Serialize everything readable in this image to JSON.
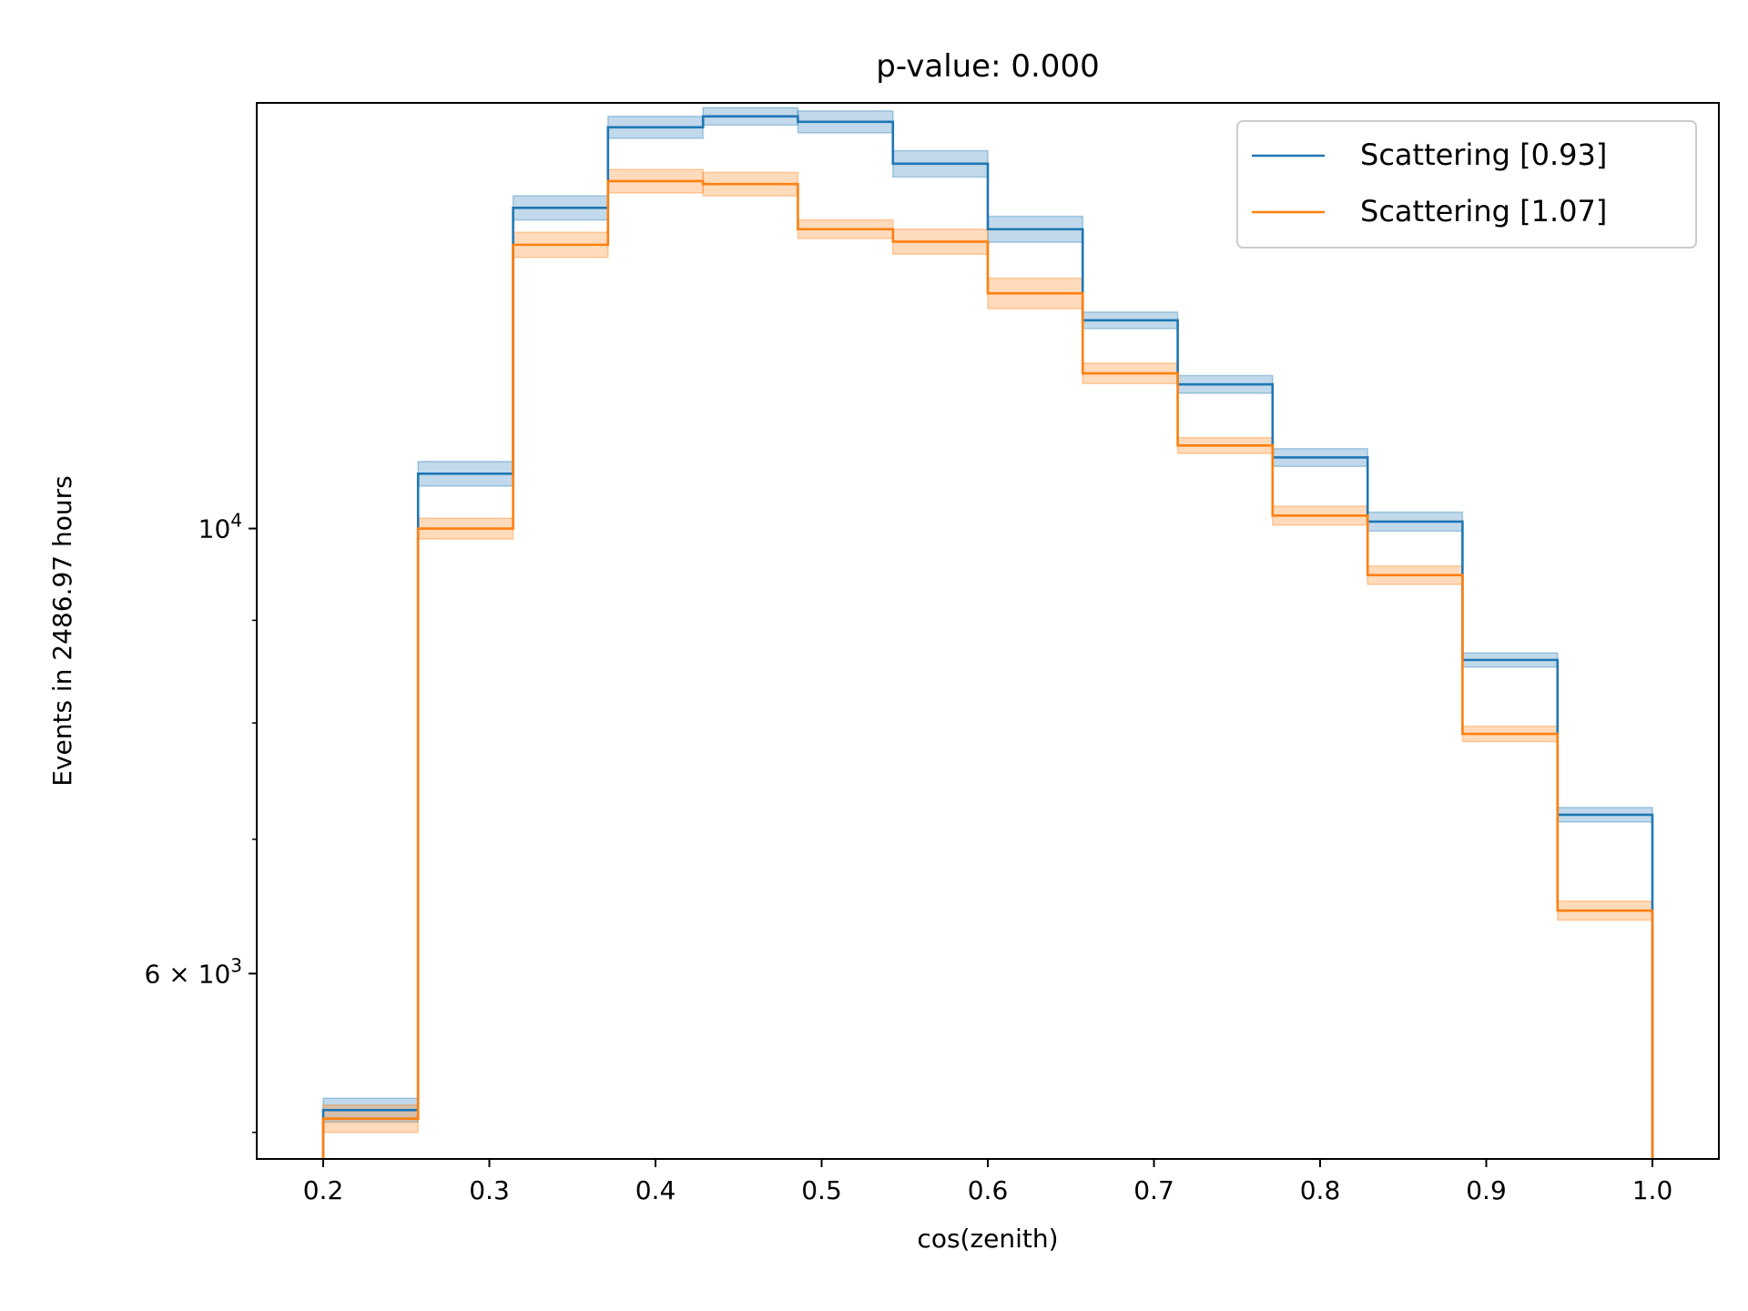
{
  "chart_data": {
    "type": "line",
    "title": "p-value: 0.000",
    "xlabel": "cos(zenith)",
    "ylabel": "Events in 2486.97 hours",
    "xlim": [
      0.16,
      1.04
    ],
    "ylim": [
      4850,
      16300
    ],
    "yscale": "log",
    "grid": false,
    "legend_position": "top-right",
    "bin_edges": [
      0.2,
      0.2571,
      0.3143,
      0.3714,
      0.4286,
      0.4857,
      0.5429,
      0.6,
      0.6571,
      0.7143,
      0.7714,
      0.8286,
      0.8857,
      0.9429,
      1.0
    ],
    "series": [
      {
        "name": "Scattering [0.93]",
        "color": "#1f77b4",
        "values": [
          5130,
          10650,
          14450,
          15850,
          16050,
          15950,
          15200,
          14100,
          12700,
          11800,
          10850,
          10080,
          8600,
          7200
        ],
        "errors": [
          70,
          150,
          200,
          200,
          160,
          200,
          230,
          210,
          120,
          120,
          110,
          110,
          70,
          60
        ]
      },
      {
        "name": "Scattering [1.07]",
        "color": "#ff7f0e",
        "values": [
          5080,
          10000,
          13850,
          14900,
          14850,
          14100,
          13900,
          13100,
          11950,
          11000,
          10150,
          9480,
          7900,
          6450
        ],
        "errors": [
          80,
          120,
          200,
          200,
          200,
          150,
          200,
          230,
          140,
          100,
          110,
          100,
          70,
          70
        ]
      }
    ],
    "x_ticks": [
      "0.2",
      "0.3",
      "0.4",
      "0.5",
      "0.6",
      "0.7",
      "0.8",
      "0.9",
      "1.0"
    ],
    "y_major_ticks": [
      {
        "value": 10000,
        "base": "10",
        "exp": "4",
        "prefix": ""
      },
      {
        "value": 6000,
        "base": "10",
        "exp": "3",
        "prefix": "6 × "
      }
    ],
    "y_minor_ticks": [
      5000,
      7000,
      8000,
      9000,
      20000
    ]
  }
}
